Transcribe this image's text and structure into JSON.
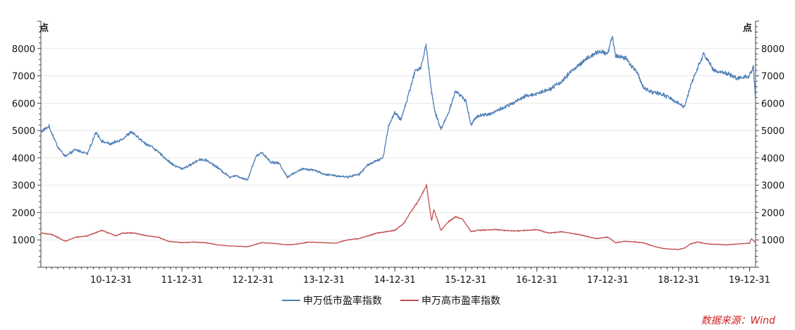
{
  "chart_data": {
    "type": "line",
    "yunit_left": "点",
    "yunit_right": "点",
    "ylim": [
      0,
      9000
    ],
    "yticks": [
      1000,
      2000,
      3000,
      4000,
      5000,
      6000,
      7000,
      8000
    ],
    "ytick_labels": [
      "1000",
      "2000",
      "3000",
      "4000",
      "5000",
      "6000",
      "7000",
      "8000"
    ],
    "xlim": [
      "2010-01-04",
      "2020-01-31"
    ],
    "xticks": [
      "2010-12-31",
      "2011-12-31",
      "2012-12-31",
      "2013-12-31",
      "2014-12-31",
      "2015-12-31",
      "2016-12-31",
      "2017-12-31",
      "2018-12-31",
      "2019-12-31"
    ],
    "xtick_labels": [
      "10-12-31",
      "11-12-31",
      "12-12-31",
      "13-12-31",
      "14-12-31",
      "15-12-31",
      "16-12-31",
      "17-12-31",
      "18-12-31",
      "19-12-31"
    ],
    "grid": "horizontal",
    "legend_position": "bottom",
    "series": [
      {
        "name": "申万低市盈率指数",
        "color": "#4f7fb8",
        "x": [
          "2010-01-04",
          "2010-02-15",
          "2010-04-01",
          "2010-05-10",
          "2010-07-01",
          "2010-09-01",
          "2010-10-15",
          "2010-11-15",
          "2010-12-31",
          "2011-03-01",
          "2011-04-15",
          "2011-06-20",
          "2011-08-01",
          "2011-10-20",
          "2011-11-15",
          "2011-12-31",
          "2012-02-15",
          "2012-04-01",
          "2012-05-10",
          "2012-07-01",
          "2012-09-01",
          "2012-10-01",
          "2012-12-03",
          "2013-01-15",
          "2013-02-15",
          "2013-04-01",
          "2013-05-15",
          "2013-06-25",
          "2013-08-01",
          "2013-09-15",
          "2013-11-15",
          "2013-12-31",
          "2014-03-01",
          "2014-05-01",
          "2014-07-01",
          "2014-08-15",
          "2014-10-31",
          "2014-11-30",
          "2014-12-31",
          "2015-01-31",
          "2015-03-01",
          "2015-04-15",
          "2015-05-15",
          "2015-06-10",
          "2015-07-08",
          "2015-07-25",
          "2015-08-26",
          "2015-09-30",
          "2015-11-10",
          "2015-12-31",
          "2016-01-28",
          "2016-03-01",
          "2016-05-01",
          "2016-07-01",
          "2016-09-01",
          "2016-11-01",
          "2016-12-31",
          "2017-03-01",
          "2017-05-10",
          "2017-07-01",
          "2017-09-01",
          "2017-11-01",
          "2017-12-31",
          "2018-01-24",
          "2018-02-10",
          "2018-04-01",
          "2018-06-01",
          "2018-06-30",
          "2018-08-01",
          "2018-10-18",
          "2018-12-31",
          "2019-01-31",
          "2019-03-01",
          "2019-04-08",
          "2019-05-10",
          "2019-07-01",
          "2019-09-01",
          "2019-11-01",
          "2019-12-31",
          "2020-01-20",
          "2020-01-31"
        ],
        "values": [
          4950,
          5150,
          4400,
          4050,
          4300,
          4150,
          4950,
          4600,
          4500,
          4700,
          4950,
          4550,
          4400,
          3900,
          3750,
          3600,
          3750,
          3950,
          3900,
          3650,
          3300,
          3350,
          3200,
          4050,
          4200,
          3850,
          3800,
          3300,
          3450,
          3600,
          3550,
          3400,
          3350,
          3300,
          3400,
          3750,
          4000,
          5200,
          5650,
          5400,
          6050,
          7200,
          7300,
          8150,
          6400,
          5700,
          5050,
          5600,
          6450,
          6100,
          5200,
          5550,
          5600,
          5800,
          6000,
          6250,
          6350,
          6500,
          6800,
          7200,
          7550,
          7850,
          7850,
          8400,
          7750,
          7650,
          7100,
          6600,
          6450,
          6300,
          6000,
          5850,
          6600,
          7300,
          7800,
          7200,
          7100,
          6900,
          7000,
          7350,
          6100
        ]
      },
      {
        "name": "申万高市盈率指数",
        "color": "#c0504d",
        "x": [
          "2010-01-04",
          "2010-03-01",
          "2010-05-10",
          "2010-07-01",
          "2010-09-01",
          "2010-11-15",
          "2011-01-25",
          "2011-03-01",
          "2011-05-01",
          "2011-07-01",
          "2011-09-01",
          "2011-10-20",
          "2011-12-31",
          "2012-03-01",
          "2012-05-01",
          "2012-07-01",
          "2012-09-01",
          "2012-12-03",
          "2013-02-15",
          "2013-04-01",
          "2013-06-25",
          "2013-08-15",
          "2013-10-15",
          "2013-12-31",
          "2014-03-01",
          "2014-05-01",
          "2014-07-01",
          "2014-10-01",
          "2014-12-31",
          "2015-02-15",
          "2015-03-20",
          "2015-04-20",
          "2015-05-20",
          "2015-06-12",
          "2015-07-08",
          "2015-07-20",
          "2015-08-26",
          "2015-09-30",
          "2015-11-10",
          "2015-12-15",
          "2016-01-28",
          "2016-03-01",
          "2016-06-01",
          "2016-09-01",
          "2016-12-31",
          "2017-03-01",
          "2017-05-10",
          "2017-08-01",
          "2017-11-01",
          "2017-12-31",
          "2018-02-10",
          "2018-04-01",
          "2018-06-30",
          "2018-09-01",
          "2018-10-18",
          "2018-12-31",
          "2019-01-31",
          "2019-03-01",
          "2019-04-08",
          "2019-06-01",
          "2019-09-01",
          "2019-11-01",
          "2019-12-31",
          "2020-01-10",
          "2020-01-31"
        ],
        "values": [
          1250,
          1200,
          950,
          1100,
          1150,
          1350,
          1150,
          1250,
          1250,
          1150,
          1100,
          950,
          900,
          920,
          900,
          820,
          780,
          750,
          900,
          880,
          820,
          850,
          920,
          900,
          880,
          1000,
          1050,
          1250,
          1350,
          1600,
          2000,
          2300,
          2650,
          3000,
          1700,
          2100,
          1350,
          1650,
          1850,
          1750,
          1300,
          1350,
          1380,
          1320,
          1380,
          1250,
          1300,
          1200,
          1050,
          1100,
          900,
          950,
          900,
          750,
          680,
          650,
          700,
          850,
          920,
          850,
          820,
          850,
          880,
          1050,
          900
        ]
      }
    ]
  },
  "source_label": "数据来源：Wind"
}
